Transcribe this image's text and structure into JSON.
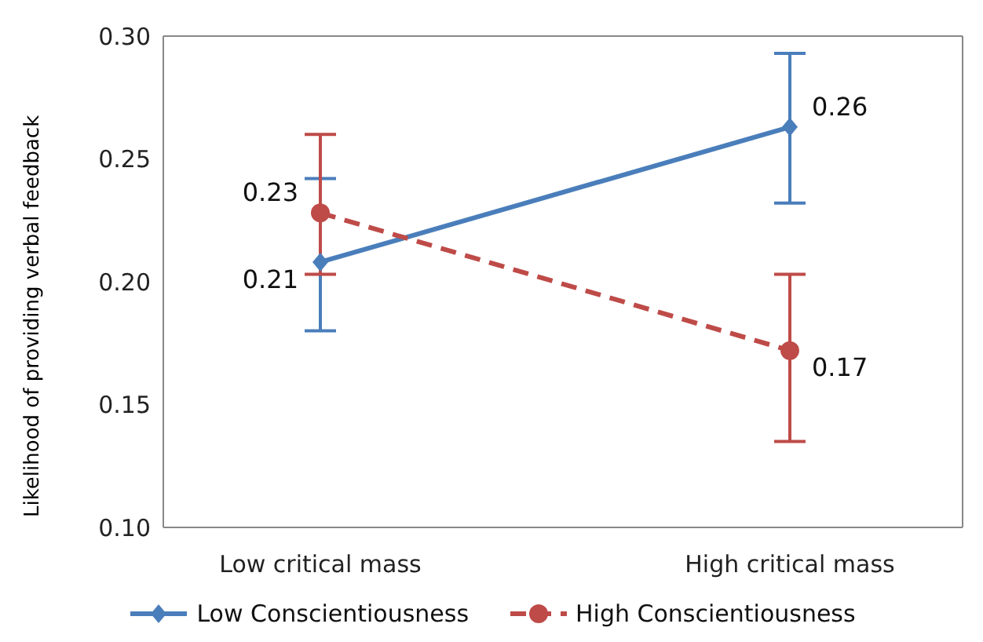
{
  "chart_data": {
    "type": "line",
    "ylabel": "Likelihood of providing verbal feedback",
    "categories": [
      "Low critical mass",
      "High critical mass"
    ],
    "series": [
      {
        "name": "Low Conscientiousness",
        "color": "#4a7ebb",
        "marker": "diamond",
        "line_style": "solid",
        "values": [
          0.208,
          0.263
        ],
        "errors": [
          [
            0.18,
            0.242
          ],
          [
            0.232,
            0.293
          ]
        ],
        "value_labels": [
          "0.21",
          "0.26"
        ]
      },
      {
        "name": "High Conscientiousness",
        "color": "#be4b48",
        "marker": "circle",
        "line_style": "dashed",
        "values": [
          0.228,
          0.172
        ],
        "errors": [
          [
            0.203,
            0.26
          ],
          [
            0.135,
            0.203
          ]
        ],
        "value_labels": [
          "0.23",
          "0.17"
        ]
      }
    ],
    "ylim": [
      0.1,
      0.3
    ],
    "yticks": [
      {
        "value": 0.1,
        "label": "0.10"
      },
      0.15,
      {
        "value": 0.2,
        "label": "0.20"
      },
      0.25,
      {
        "value": 0.3,
        "label": "0.30"
      }
    ],
    "legend": "bottom"
  }
}
